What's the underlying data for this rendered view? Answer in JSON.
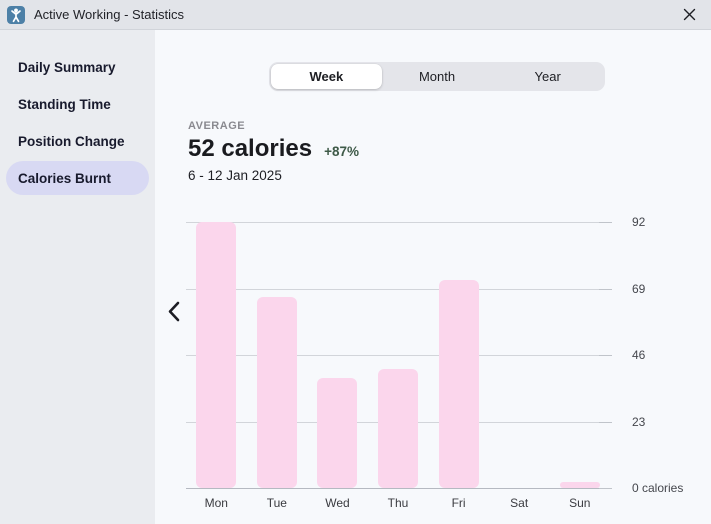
{
  "window": {
    "title": "Active Working - Statistics",
    "icons": {
      "app": "person-arms-up-icon",
      "close": "close-icon",
      "prev": "chevron-left-icon"
    }
  },
  "sidebar": {
    "items": [
      {
        "label": "Daily Summary",
        "selected": false
      },
      {
        "label": "Standing Time",
        "selected": false
      },
      {
        "label": "Position Change",
        "selected": false
      },
      {
        "label": "Calories Burnt",
        "selected": true
      }
    ]
  },
  "main": {
    "tabs": [
      {
        "label": "Week",
        "selected": true
      },
      {
        "label": "Month",
        "selected": false
      },
      {
        "label": "Year",
        "selected": false
      }
    ],
    "summary": {
      "caption": "AVERAGE",
      "value": "52 calories",
      "delta": "+87%",
      "period": "6 - 12 Jan 2025"
    }
  },
  "chart_data": {
    "type": "bar",
    "title": "Calories Burnt",
    "categories": [
      "Mon",
      "Tue",
      "Wed",
      "Thu",
      "Fri",
      "Sat",
      "Sun"
    ],
    "values": [
      92,
      66,
      38,
      41,
      72,
      0,
      2
    ],
    "xlabel": "",
    "ylabel": "calories",
    "ylim": [
      0,
      92
    ],
    "yticks": [
      0,
      23,
      46,
      69,
      92
    ],
    "ytick_labels": [
      "0 calories",
      "23",
      "46",
      "69",
      "92"
    ],
    "grid": true,
    "axis_side": "right",
    "legend_position": "none",
    "bar_color": "#fbd6ec"
  },
  "colors": {
    "titlebar_bg": "#e2e4e9",
    "sidebar_bg": "#eaecf0",
    "main_bg": "#f7f9fc",
    "selected_pill": "#d8d9f3",
    "segmented_bg": "#e4e5ea",
    "segment_selected_bg": "#ffffff",
    "delta_green": "#3e5a48",
    "bar_pink": "#fbd6ec",
    "app_icon_blue": "#4d80a7"
  }
}
